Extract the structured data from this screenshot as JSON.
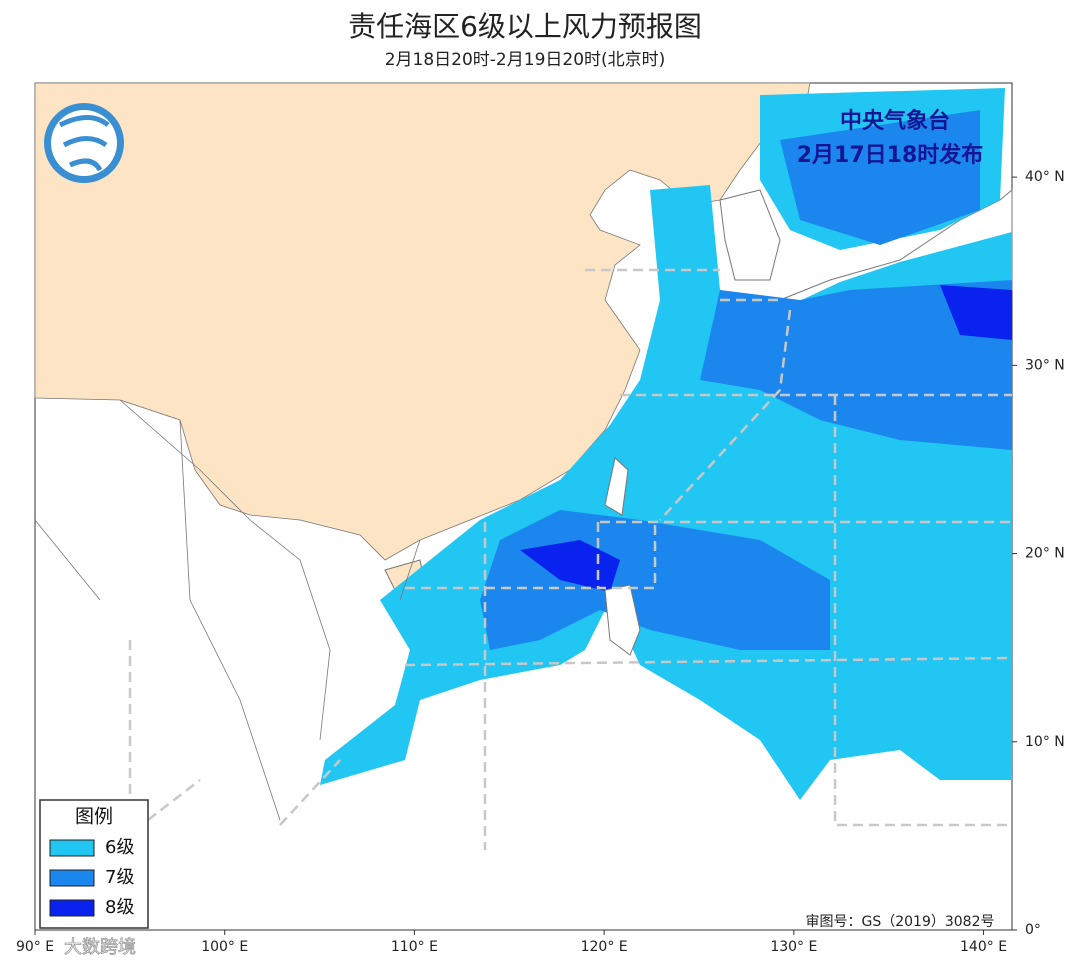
{
  "header": {
    "title": "责任海区6级以上风力预报图",
    "subtitle": "2月18日20时-2月19日20时(北京时)"
  },
  "issuer": {
    "name": "中央气象台",
    "time": "2月17日18时发布"
  },
  "legend": {
    "title": "图例",
    "items": [
      {
        "label": "6级",
        "color": "#22c6f2"
      },
      {
        "label": "7级",
        "color": "#1a86ee"
      },
      {
        "label": "8级",
        "color": "#0a22ee"
      }
    ]
  },
  "map": {
    "lon_range": [
      90,
      141.5
    ],
    "lat_range": [
      0,
      45
    ],
    "lon_ticks": [
      {
        "value": 90,
        "label": "90° E"
      },
      {
        "value": 100,
        "label": "100° E"
      },
      {
        "value": 110,
        "label": "110° E"
      },
      {
        "value": 120,
        "label": "120° E"
      },
      {
        "value": 130,
        "label": "130° E"
      },
      {
        "value": 140,
        "label": "140° E"
      }
    ],
    "lat_ticks": [
      {
        "value": 0,
        "label": "0°"
      },
      {
        "value": 10,
        "label": "10° N"
      },
      {
        "value": 20,
        "label": "20° N"
      },
      {
        "value": 30,
        "label": "30° N"
      },
      {
        "value": 40,
        "label": "40° N"
      }
    ],
    "approval": "审图号：GS（2019）3082号"
  },
  "watermark": "大数跨境"
}
